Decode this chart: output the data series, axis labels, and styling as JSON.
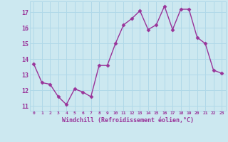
{
  "x": [
    0,
    1,
    2,
    3,
    4,
    5,
    6,
    7,
    8,
    9,
    10,
    11,
    12,
    13,
    14,
    15,
    16,
    17,
    18,
    19,
    20,
    21,
    22,
    23
  ],
  "y": [
    13.7,
    12.5,
    12.4,
    11.6,
    11.1,
    12.1,
    11.9,
    11.6,
    13.6,
    13.6,
    15.0,
    16.2,
    16.6,
    17.1,
    15.9,
    16.2,
    17.4,
    15.9,
    17.2,
    17.2,
    15.4,
    15.0,
    13.3,
    13.1
  ],
  "line_color": "#993399",
  "marker": "D",
  "markersize": 2.5,
  "linewidth": 1.0,
  "background_color": "#cce8f0",
  "grid_color": "#b0d8e8",
  "xlabel": "Windchill (Refroidissement éolien,°C)",
  "xlabel_color": "#993399",
  "tick_color": "#993399",
  "ylim": [
    10.7,
    17.7
  ],
  "yticks": [
    11,
    12,
    13,
    14,
    15,
    16,
    17
  ],
  "xticks": [
    0,
    1,
    2,
    3,
    4,
    5,
    6,
    7,
    8,
    9,
    10,
    11,
    12,
    13,
    14,
    15,
    16,
    17,
    18,
    19,
    20,
    21,
    22,
    23
  ],
  "xtick_labels": [
    "0",
    "1",
    "2",
    "3",
    "4",
    "5",
    "6",
    "7",
    "8",
    "9",
    "10",
    "11",
    "12",
    "13",
    "14",
    "15",
    "16",
    "17",
    "18",
    "19",
    "20",
    "21",
    "22",
    "23"
  ]
}
